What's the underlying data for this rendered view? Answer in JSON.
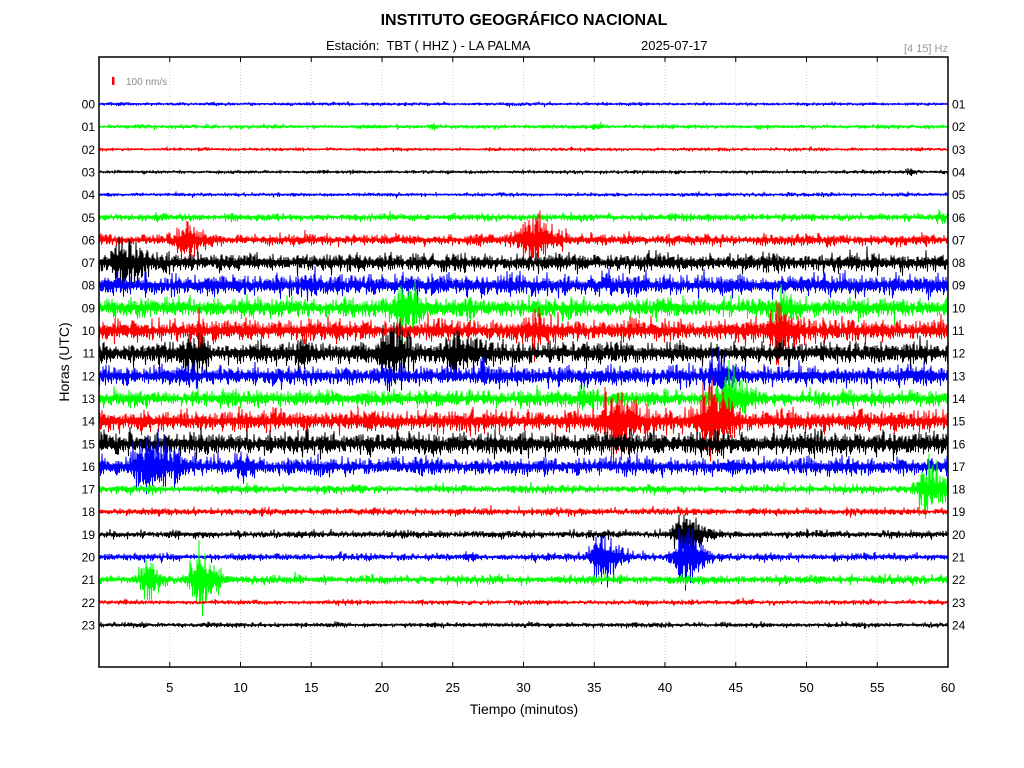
{
  "chart_data": {
    "type": "line",
    "title": "INSTITUTO GEOGRÁFICO NACIONAL",
    "station": "Estación:  TBT ( HHZ ) - LA PALMA",
    "date": "2025-07-17",
    "filter": "[4 15] Hz",
    "scale_label": "100 nm/s",
    "scale_value": 100,
    "scale_color": "#ff0000",
    "xlabel": "Tiempo (minutos)",
    "ylabel": "Horas (UTC)",
    "xlim": [
      0,
      60
    ],
    "xticks": [
      5,
      10,
      15,
      20,
      25,
      30,
      35,
      40,
      45,
      50,
      55,
      60
    ],
    "grid": true,
    "series": [
      {
        "hour": "00",
        "hour_end": "01",
        "color": "#0000ff",
        "noise": 18,
        "events": []
      },
      {
        "hour": "01",
        "hour_end": "02",
        "color": "#00ff00",
        "noise": 22,
        "events": [
          {
            "t": 23.5,
            "amp": 30,
            "dur": 0.8
          },
          {
            "t": 35.1,
            "amp": 30,
            "dur": 0.8
          }
        ]
      },
      {
        "hour": "02",
        "hour_end": "03",
        "color": "#ff0000",
        "noise": 18,
        "events": []
      },
      {
        "hour": "03",
        "hour_end": "04",
        "color": "#000000",
        "noise": 18,
        "events": [
          {
            "t": 57.2,
            "amp": 35,
            "dur": 1
          }
        ]
      },
      {
        "hour": "04",
        "hour_end": "05",
        "color": "#0000ff",
        "noise": 20,
        "events": []
      },
      {
        "hour": "05",
        "hour_end": "06",
        "color": "#00ff00",
        "noise": 38,
        "events": [
          {
            "t": 9.4,
            "amp": 30,
            "dur": 0.8
          },
          {
            "t": 59.4,
            "amp": 55,
            "dur": 1.2
          }
        ]
      },
      {
        "hour": "06",
        "hour_end": "07",
        "color": "#ff0000",
        "noise": 58,
        "events": [
          {
            "t": 6.1,
            "amp": 150,
            "dur": 2.6
          },
          {
            "t": 30.5,
            "amp": 270,
            "dur": 3.6
          }
        ]
      },
      {
        "hour": "07",
        "hour_end": "08",
        "color": "#000000",
        "noise": 92,
        "events": [
          {
            "t": 1.5,
            "amp": 220,
            "dur": 3.4
          }
        ]
      },
      {
        "hour": "08",
        "hour_end": "09",
        "color": "#0000ff",
        "noise": 108,
        "events": []
      },
      {
        "hour": "09",
        "hour_end": "10",
        "color": "#00ff00",
        "noise": 98,
        "events": [
          {
            "t": 21.5,
            "amp": 260,
            "dur": 2.8
          },
          {
            "t": 48.3,
            "amp": 100,
            "dur": 2
          }
        ]
      },
      {
        "hour": "10",
        "hour_end": "11",
        "color": "#ff0000",
        "noise": 108,
        "events": [
          {
            "t": 7.1,
            "amp": 110,
            "dur": 0.7
          },
          {
            "t": 30.7,
            "amp": 130,
            "dur": 2.4
          },
          {
            "t": 48.1,
            "amp": 290,
            "dur": 2.8
          }
        ]
      },
      {
        "hour": "11",
        "hour_end": "12",
        "color": "#000000",
        "noise": 112,
        "events": [
          {
            "t": 6.6,
            "amp": 170,
            "dur": 2.2
          },
          {
            "t": 14.2,
            "amp": 110,
            "dur": 0.7
          },
          {
            "t": 20.4,
            "amp": 300,
            "dur": 2.6
          },
          {
            "t": 24.8,
            "amp": 150,
            "dur": 4
          }
        ]
      },
      {
        "hour": "12",
        "hour_end": "13",
        "color": "#0000ff",
        "noise": 100,
        "events": [
          {
            "t": 27.1,
            "amp": 260,
            "dur": 0.5
          },
          {
            "t": 43.8,
            "amp": 170,
            "dur": 2
          }
        ]
      },
      {
        "hour": "13",
        "hour_end": "14",
        "color": "#00ff00",
        "noise": 85,
        "events": [
          {
            "t": 34.3,
            "amp": 100,
            "dur": 2
          },
          {
            "t": 44.5,
            "amp": 270,
            "dur": 2.6
          }
        ]
      },
      {
        "hour": "14",
        "hour_end": "15",
        "color": "#ff0000",
        "noise": 112,
        "events": [
          {
            "t": 36.5,
            "amp": 300,
            "dur": 3.6
          },
          {
            "t": 43.2,
            "amp": 400,
            "dur": 3
          }
        ]
      },
      {
        "hour": "15",
        "hour_end": "16",
        "color": "#000000",
        "noise": 115,
        "events": []
      },
      {
        "hour": "16",
        "hour_end": "17",
        "color": "#0000ff",
        "noise": 92,
        "events": [
          {
            "t": 3.5,
            "amp": 330,
            "dur": 4
          },
          {
            "t": 10.2,
            "amp": 110,
            "dur": 2.2
          }
        ]
      },
      {
        "hour": "17",
        "hour_end": "18",
        "color": "#00ff00",
        "noise": 45,
        "events": [
          {
            "t": 58.4,
            "amp": 240,
            "dur": 3
          }
        ]
      },
      {
        "hour": "18",
        "hour_end": "19",
        "color": "#ff0000",
        "noise": 38,
        "events": []
      },
      {
        "hour": "19",
        "hour_end": "20",
        "color": "#000000",
        "noise": 38,
        "events": [
          {
            "t": 41.3,
            "amp": 240,
            "dur": 3.2
          }
        ]
      },
      {
        "hour": "20",
        "hour_end": "21",
        "color": "#0000ff",
        "noise": 38,
        "events": [
          {
            "t": 35.4,
            "amp": 310,
            "dur": 3
          },
          {
            "t": 41.4,
            "amp": 310,
            "dur": 3
          }
        ]
      },
      {
        "hour": "21",
        "hour_end": "22",
        "color": "#00ff00",
        "noise": 45,
        "events": [
          {
            "t": 3.3,
            "amp": 210,
            "dur": 2
          },
          {
            "t": 7.1,
            "amp": 360,
            "dur": 2.6
          }
        ]
      },
      {
        "hour": "22",
        "hour_end": "23",
        "color": "#ff0000",
        "noise": 25,
        "events": [
          {
            "t": 41.8,
            "amp": 55,
            "dur": 0.6
          }
        ]
      },
      {
        "hour": "23",
        "hour_end": "24",
        "color": "#000000",
        "noise": 25,
        "events": []
      }
    ]
  }
}
